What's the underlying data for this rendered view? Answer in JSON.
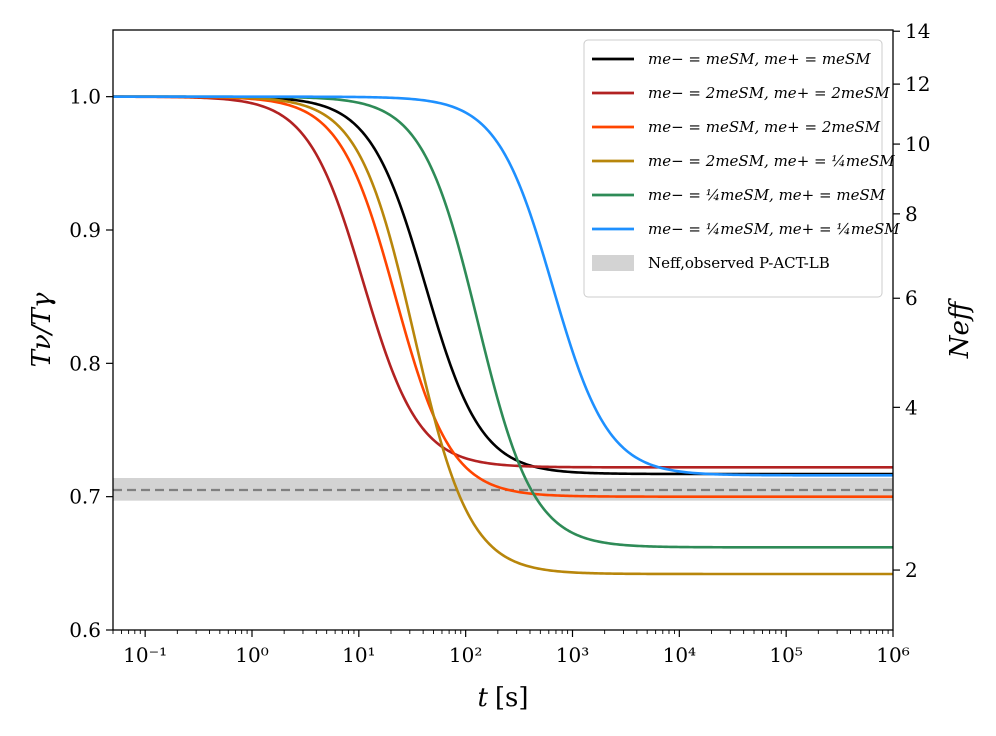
{
  "chart_data": {
    "type": "line",
    "xlabel_var": "t",
    "xlabel_unit": "[s]",
    "ylabel_left": "Tν/Tγ",
    "ylabel_right": "Neff",
    "xscale": "log",
    "xlim": [
      0.05,
      1000000
    ],
    "ylim": [
      0.6,
      1.05
    ],
    "x_ticks": [
      {
        "value": 0.1,
        "label": "10⁻¹"
      },
      {
        "value": 1,
        "label": "10⁰"
      },
      {
        "value": 10,
        "label": "10¹"
      },
      {
        "value": 100,
        "label": "10²"
      },
      {
        "value": 1000,
        "label": "10³"
      },
      {
        "value": 10000,
        "label": "10⁴"
      },
      {
        "value": 100000,
        "label": "10⁵"
      },
      {
        "value": 1000000,
        "label": "10⁶"
      }
    ],
    "y_ticks_left": [
      {
        "value": 0.6,
        "label": "0.6"
      },
      {
        "value": 0.7,
        "label": "0.7"
      },
      {
        "value": 0.8,
        "label": "0.8"
      },
      {
        "value": 0.9,
        "label": "0.9"
      },
      {
        "value": 1.0,
        "label": "1.0"
      }
    ],
    "y_ticks_right": [
      {
        "value": 2,
        "label": "2"
      },
      {
        "value": 4,
        "label": "4"
      },
      {
        "value": 6,
        "label": "6"
      },
      {
        "value": 8,
        "label": "8"
      },
      {
        "value": 10,
        "label": "10"
      },
      {
        "value": 12,
        "label": "12"
      },
      {
        "value": 14,
        "label": "14"
      }
    ],
    "observed_band": {
      "center": 0.705,
      "low": 0.697,
      "high": 0.714,
      "color": "#d3d3d3",
      "line_color": "#808080",
      "label": "Neff,observed P-ACT-LB"
    },
    "series": [
      {
        "name": "me− = meSM, me+ = meSM",
        "color": "#000000",
        "final": 0.717,
        "t_mid": 42,
        "width": 0.52
      },
      {
        "name": "me− = 2meSM, me+ = 2meSM",
        "color": "#b22222",
        "final": 0.722,
        "t_mid": 11,
        "width": 0.52
      },
      {
        "name": "me− = meSM, me+ = 2meSM",
        "color": "#ff4500",
        "final": 0.7,
        "t_mid": 22,
        "width": 0.52
      },
      {
        "name": "me− = 2meSM, me+ = ¼meSM",
        "color": "#b8860b",
        "final": 0.642,
        "t_mid": 33,
        "width": 0.52
      },
      {
        "name": "me− = ¼meSM, me+ = meSM",
        "color": "#2e8b57",
        "final": 0.662,
        "t_mid": 130,
        "width": 0.52
      },
      {
        "name": "me− = ¼meSM, me+ = ¼meSM",
        "color": "#1e90ff",
        "final": 0.716,
        "t_mid": 650,
        "width": 0.52
      }
    ]
  }
}
